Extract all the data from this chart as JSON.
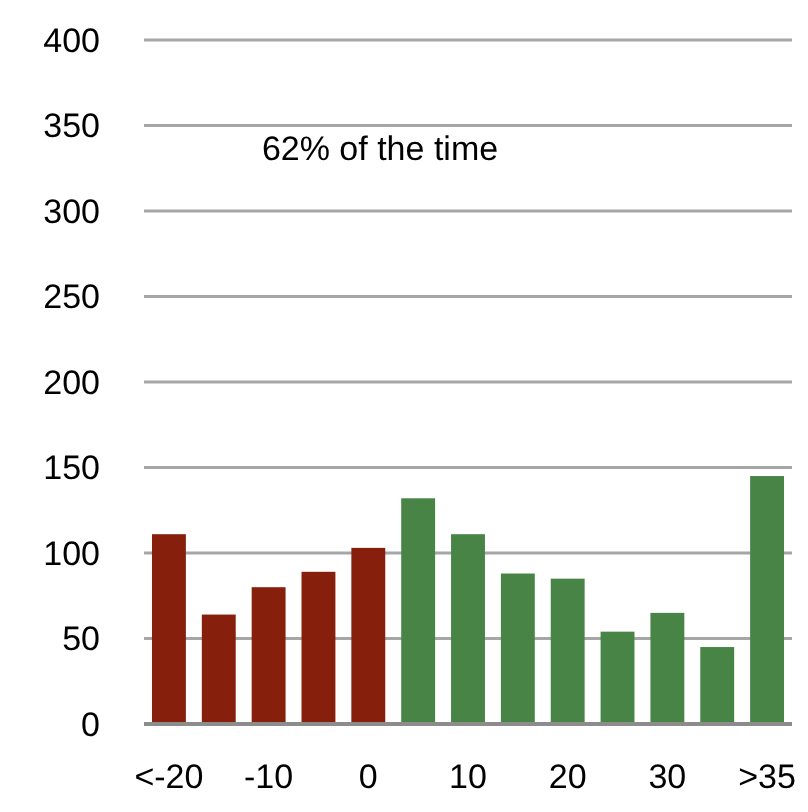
{
  "chart_data": {
    "type": "bar",
    "categories": [
      "<-20",
      null,
      "-10",
      null,
      "0",
      null,
      "10",
      null,
      "20",
      null,
      "30",
      null,
      ">35"
    ],
    "values": [
      111,
      64,
      80,
      89,
      103,
      132,
      111,
      88,
      85,
      54,
      65,
      45,
      145
    ],
    "colors": [
      "#861f0c",
      "#861f0c",
      "#861f0c",
      "#861f0c",
      "#861f0c",
      "#488446",
      "#488446",
      "#488446",
      "#488446",
      "#488446",
      "#488446",
      "#488446",
      "#488446"
    ],
    "ylim": [
      0,
      400
    ],
    "yticks": [
      0,
      50,
      100,
      150,
      200,
      250,
      300,
      350,
      400
    ],
    "grid": "y",
    "annotations": [
      "62% of the time"
    ]
  }
}
